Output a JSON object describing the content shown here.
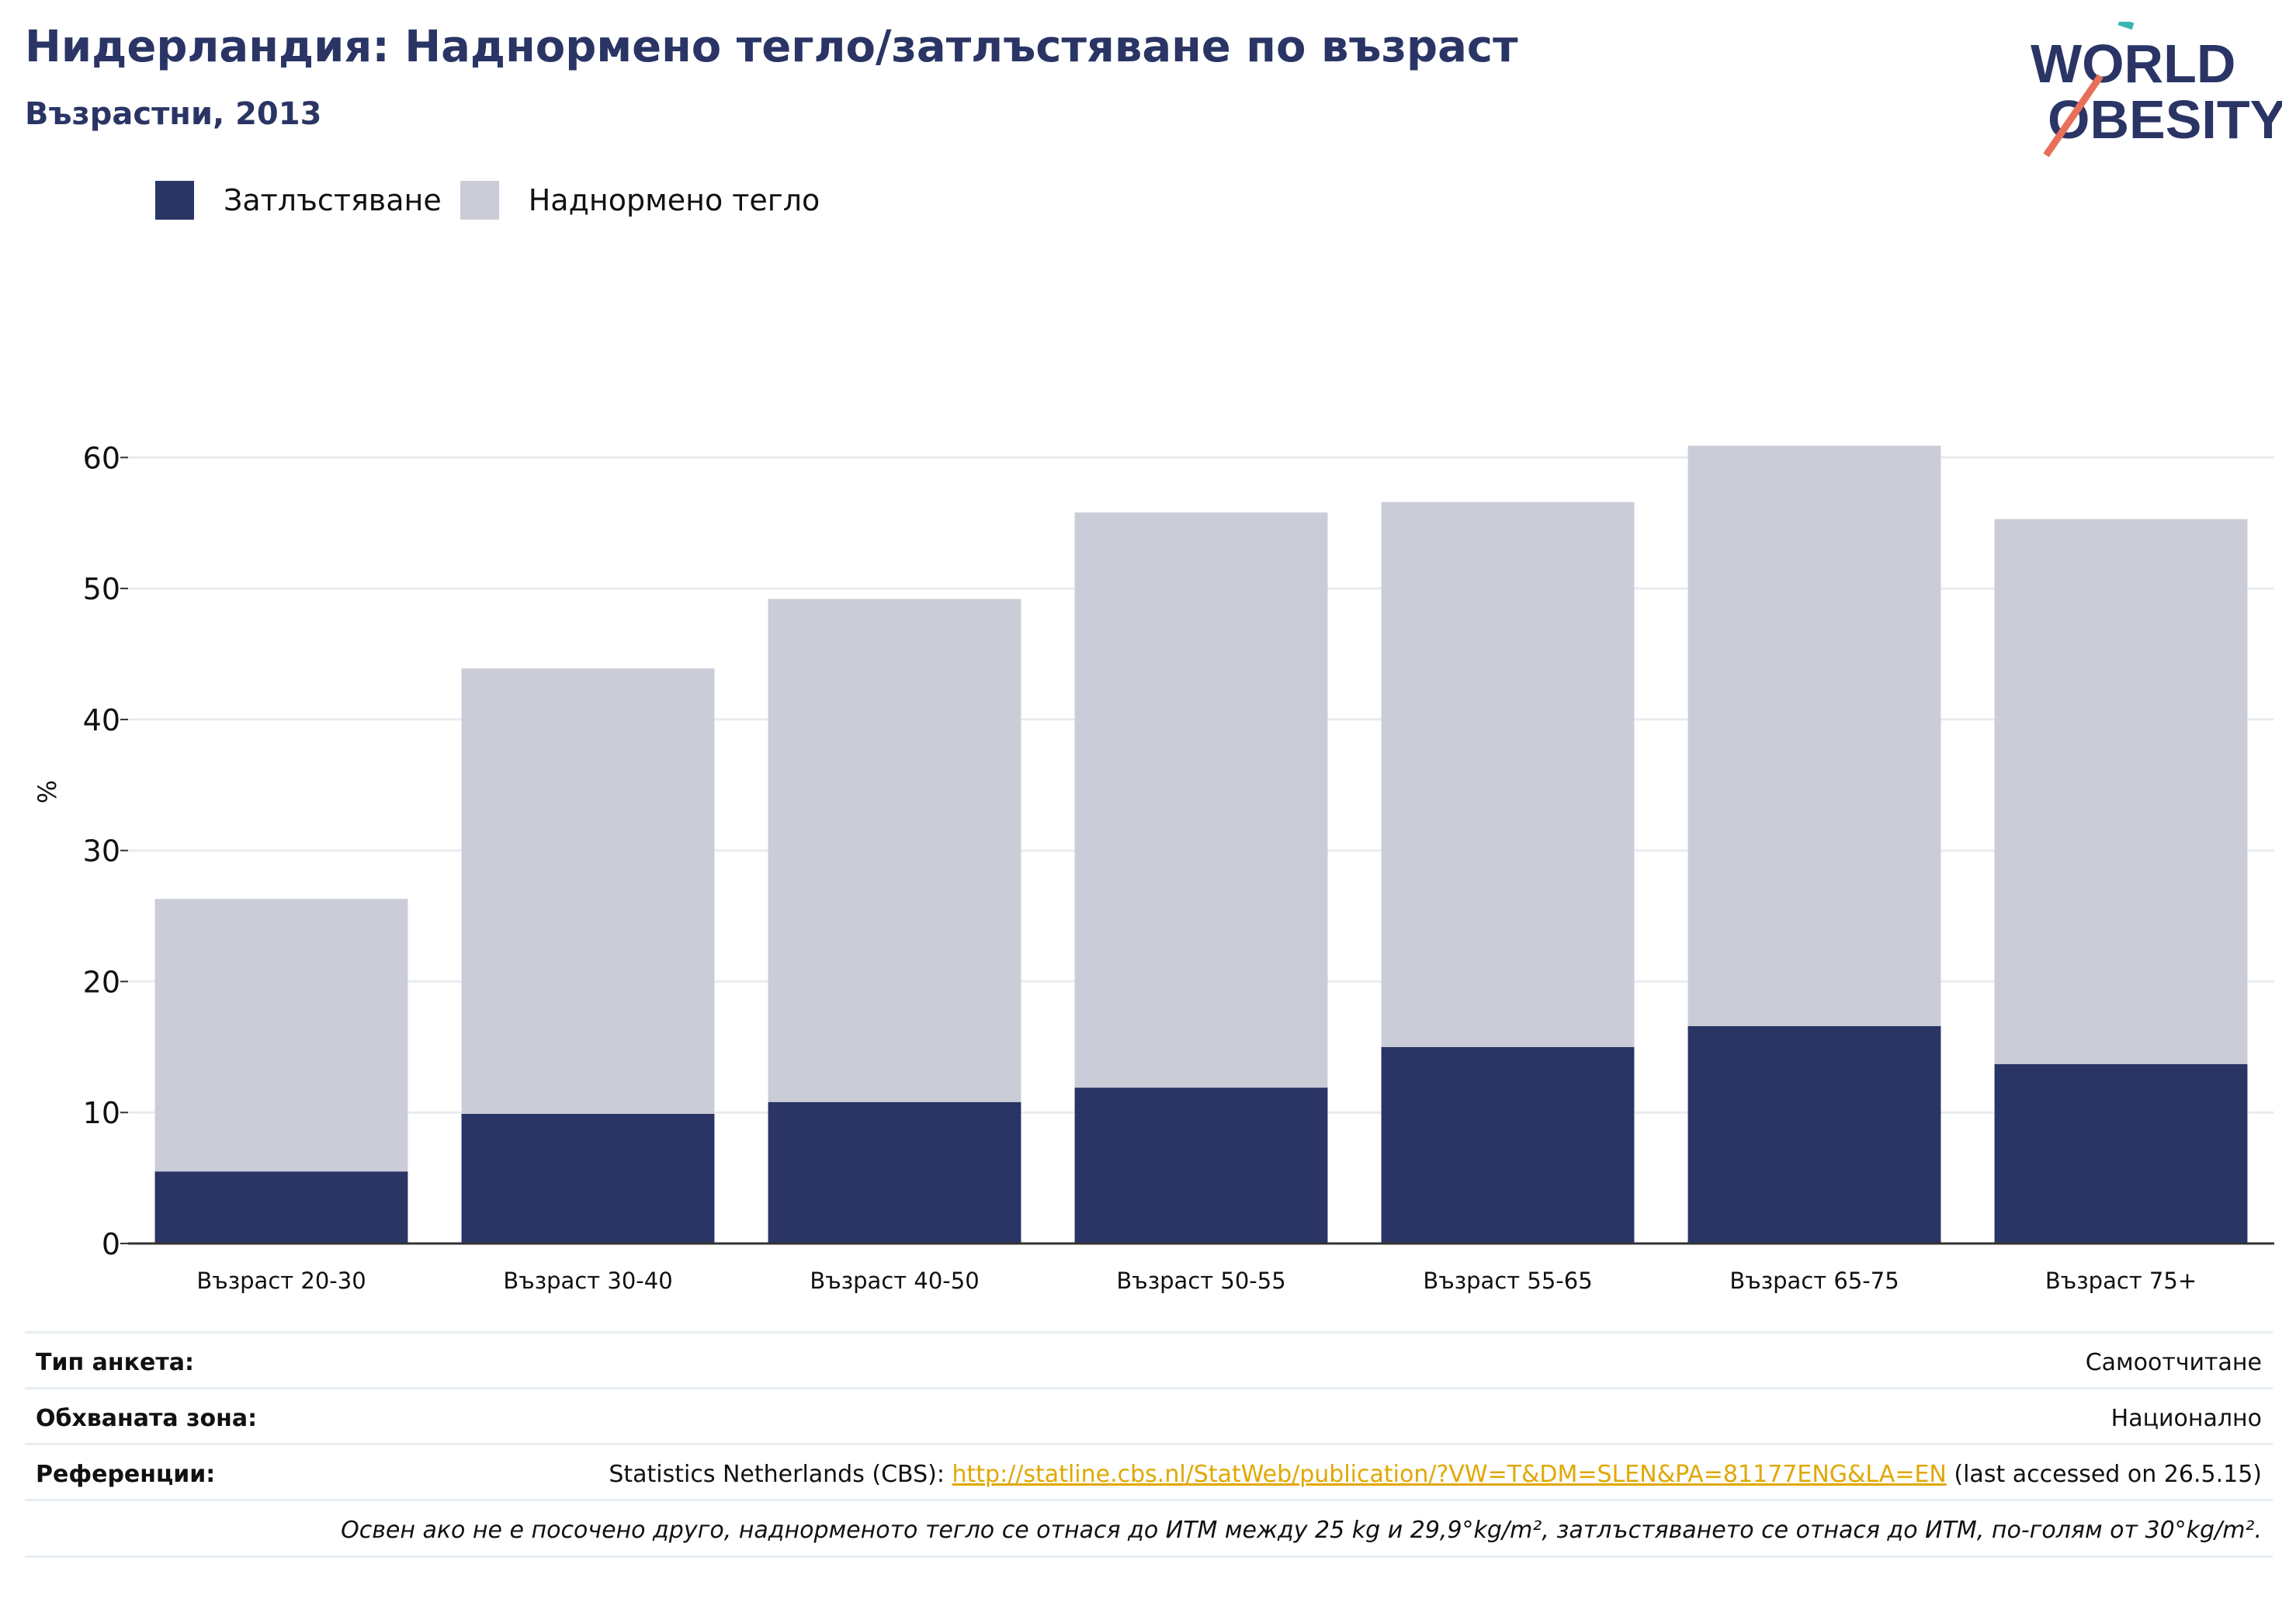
{
  "header": {
    "title": "Нидерландия: Наднормено тегло/затлъстяване по възраст",
    "subtitle": "Възрастни, 2013"
  },
  "logo": {
    "line1": "WORLD",
    "line2": "OBESITY"
  },
  "colors": {
    "obesity": "#2a3565",
    "overweight": "#caccd8",
    "grid": "#e9ecef",
    "axis": "#333333",
    "accent_orange": "#e8705a",
    "accent_teal": "#3ab5b0"
  },
  "legend": [
    {
      "label": "Затлъстяване",
      "color": "#2a3565"
    },
    {
      "label": "Наднормено тегло",
      "color": "#caccd8"
    }
  ],
  "chart_data": {
    "type": "bar",
    "stacked": true,
    "categories": [
      "Възраст 20-30",
      "Възраст 30-40",
      "Възраст 40-50",
      "Възраст 50-55",
      "Възраст 55-65",
      "Възраст 65-75",
      "Възраст 75+"
    ],
    "series": [
      {
        "name": "Затлъстяване",
        "values": [
          5.5,
          9.9,
          10.8,
          11.9,
          15.0,
          16.6,
          13.7
        ]
      },
      {
        "name": "Наднормено тегло",
        "values": [
          20.8,
          34.0,
          38.4,
          43.9,
          41.6,
          44.3,
          41.6
        ]
      }
    ],
    "totals": [
      26.3,
      43.9,
      49.2,
      55.8,
      56.6,
      60.9,
      55.3
    ],
    "ylabel": "%",
    "ylim": [
      0,
      65
    ],
    "yticks": [
      0,
      10,
      20,
      30,
      40,
      50,
      60
    ],
    "grid": true,
    "legend_position": "top-left"
  },
  "meta": {
    "survey_type_label": "Тип анкета:",
    "survey_type_value": "Самоотчитане",
    "coverage_label": "Обхваната зона:",
    "coverage_value": "Национално",
    "references_label": "Референции:",
    "references_prefix": "Statistics Netherlands (CBS): ",
    "references_link": "http://statline.cbs.nl/StatWeb/publication/?VW=T&DM=SLEN&PA=81177ENG&LA=EN",
    "references_suffix": " (last accessed on 26.5.15)",
    "note": "Освен ако не е посочено друго, наднорменото тегло се отнася до ИТМ между 25 kg и 29,9°kg/m², затлъстяването се отнася до ИТМ, по-голям от 30°kg/m²."
  }
}
